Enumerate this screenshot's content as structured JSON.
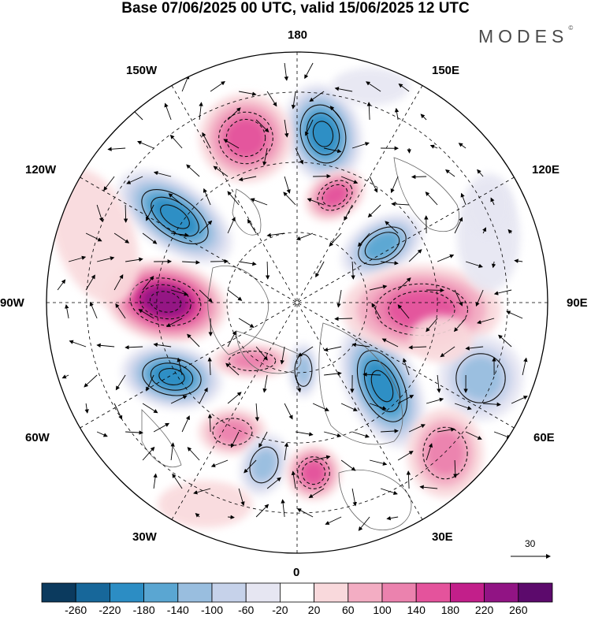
{
  "title": "Base 07/06/2025 00 UTC, valid 15/06/2025 12 UTC",
  "brand": {
    "text": "MODES",
    "mark": "©"
  },
  "lon_labels": {
    "top": "180",
    "bottom": "0",
    "left": "90W",
    "right": "90E",
    "nw_upper": "150W",
    "ne_upper": "150E",
    "nw_lower": "120W",
    "ne_lower": "120E",
    "sw_upper": "60W",
    "se_upper": "60E",
    "sw_lower": "30W",
    "se_lower": "30E"
  },
  "reference_vector": {
    "value": "30"
  },
  "colorbar": {
    "colors": [
      "#0b3a5e",
      "#17679a",
      "#2c8dc4",
      "#5aa6d2",
      "#99bedf",
      "#c6d2ea",
      "#e6e6f2",
      "#ffffff",
      "#f9d9dc",
      "#f3adc3",
      "#eb82ae",
      "#e4539c",
      "#c21f8a",
      "#911484",
      "#5c0a6c"
    ],
    "ticks": [
      "-260",
      "-220",
      "-180",
      "-140",
      "-100",
      "-60",
      "-20",
      "20",
      "60",
      "100",
      "140",
      "180",
      "220",
      "260"
    ]
  },
  "anomaly_centres": [
    {
      "sign": "neg",
      "strength": 3
    },
    {
      "sign": "pos",
      "strength": 2
    },
    {
      "sign": "neg",
      "strength": 3
    },
    {
      "sign": "pos",
      "strength": 4
    },
    {
      "sign": "neg",
      "strength": 2
    },
    {
      "sign": "pos",
      "strength": 2
    },
    {
      "sign": "neg",
      "strength": 3
    },
    {
      "sign": "pos",
      "strength": 2
    },
    {
      "sign": "neg",
      "strength": 3
    },
    {
      "sign": "pos",
      "strength": 1
    },
    {
      "sign": "neg",
      "strength": 1
    },
    {
      "sign": "pos",
      "strength": 2
    },
    {
      "sign": "neg",
      "strength": 1
    },
    {
      "sign": "pos",
      "strength": 1
    },
    {
      "sign": "pos",
      "strength": 1
    },
    {
      "sign": "neg",
      "strength": 1
    }
  ]
}
